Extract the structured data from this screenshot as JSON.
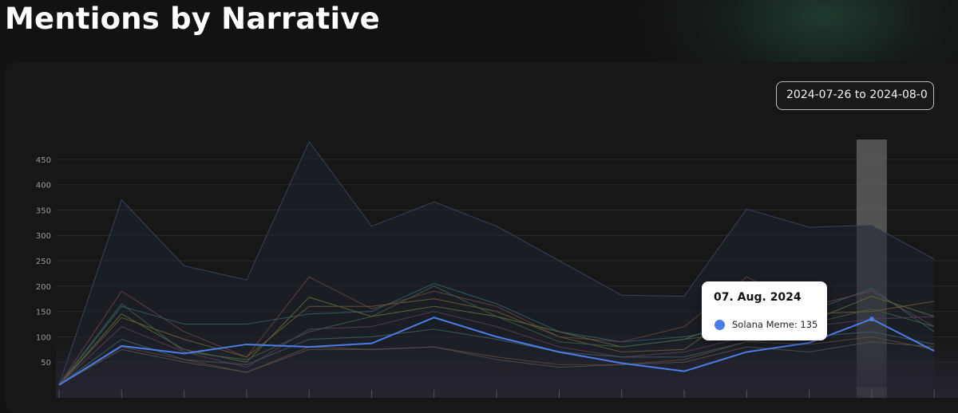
{
  "page": {
    "title": "Mentions by Narrative",
    "date_range": "2024-07-26 to 2024-08-0"
  },
  "colors": {
    "background": "#121212",
    "card": "#171717",
    "grid": "#2a2a2a",
    "highlight": "#4a7de8"
  },
  "tooltip": {
    "date": "07. Aug. 2024",
    "series_name": "Solana Meme",
    "value": 135,
    "text": "Solana Meme: 135"
  },
  "chart_data": {
    "type": "line",
    "title": "",
    "xlabel": "",
    "ylabel": "",
    "ylim": [
      0,
      490
    ],
    "yticks": [
      50,
      100,
      150,
      200,
      250,
      300,
      350,
      400,
      450
    ],
    "grid": true,
    "x_count": 15,
    "highlight_index": 13,
    "series": [
      {
        "color": "#3a4660",
        "values": [
          5,
          370,
          240,
          212,
          485,
          318,
          366,
          318,
          250,
          182,
          180,
          352,
          316,
          320,
          253
        ]
      },
      {
        "color": "#2f5f6a",
        "values": [
          5,
          160,
          125,
          125,
          145,
          150,
          205,
          165,
          110,
          90,
          100,
          120,
          150,
          195,
          110
        ]
      },
      {
        "color": "#6a4040",
        "values": [
          5,
          190,
          110,
          60,
          218,
          155,
          190,
          160,
          100,
          90,
          120,
          218,
          160,
          190,
          120
        ]
      },
      {
        "color": "#5e6a38",
        "values": [
          5,
          145,
          75,
          50,
          178,
          140,
          160,
          140,
          110,
          80,
          95,
          140,
          130,
          180,
          140
        ]
      },
      {
        "color": "#6a5a30",
        "values": [
          5,
          138,
          95,
          60,
          160,
          160,
          175,
          150,
          100,
          70,
          75,
          160,
          145,
          150,
          170
        ]
      },
      {
        "color": "#3e5e48",
        "values": [
          5,
          165,
          70,
          55,
          110,
          140,
          200,
          140,
          90,
          80,
          95,
          110,
          125,
          155,
          120
        ]
      },
      {
        "color": "#5a3a58",
        "values": [
          5,
          120,
          70,
          40,
          115,
          120,
          150,
          120,
          80,
          60,
          70,
          100,
          120,
          135,
          140
        ]
      },
      {
        "color": "#405a5a",
        "values": [
          5,
          95,
          55,
          45,
          95,
          100,
          115,
          95,
          70,
          60,
          60,
          90,
          100,
          110,
          85
        ]
      },
      {
        "color": "#604838",
        "values": [
          5,
          80,
          55,
          30,
          80,
          75,
          80,
          60,
          45,
          45,
          55,
          90,
          85,
          100,
          75
        ]
      },
      {
        "color": "#505050",
        "values": [
          5,
          75,
          50,
          30,
          75,
          75,
          80,
          55,
          40,
          45,
          50,
          80,
          70,
          90,
          80
        ]
      },
      {
        "name": "Solana Meme",
        "color": "#4a7de8",
        "values": [
          5,
          82,
          67,
          85,
          80,
          87,
          138,
          100,
          70,
          48,
          32,
          70,
          88,
          135,
          72
        ]
      }
    ]
  }
}
